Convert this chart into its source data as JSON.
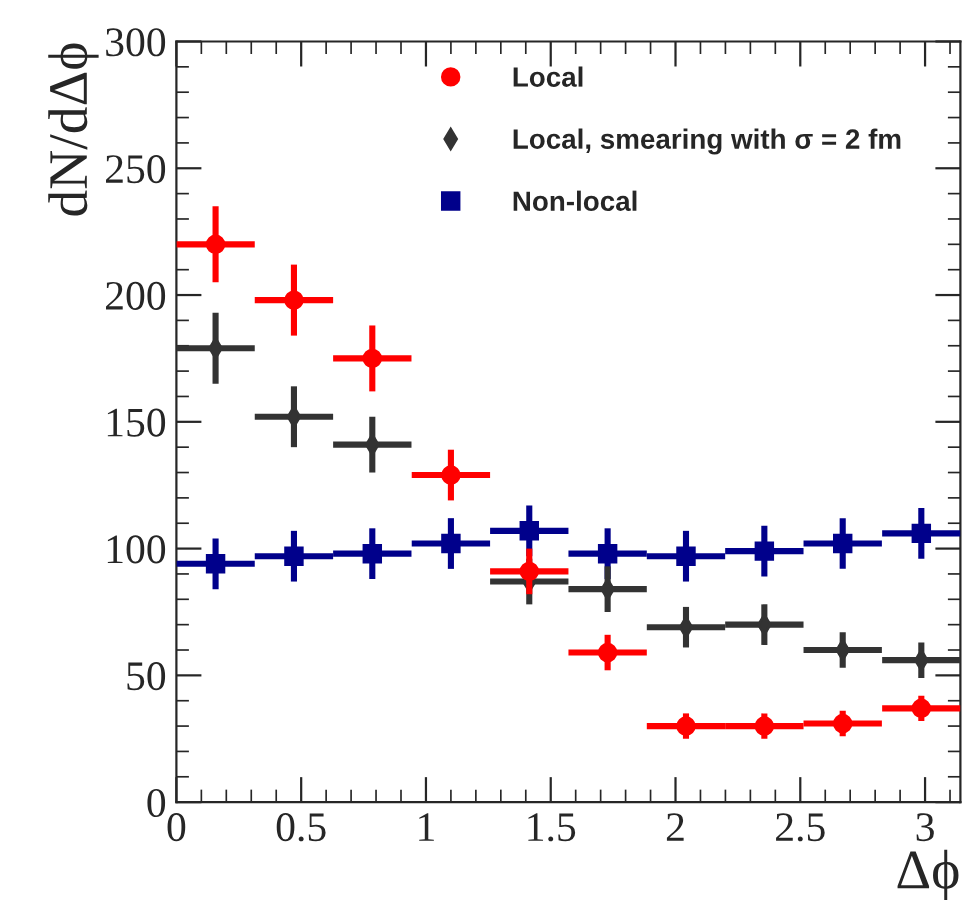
{
  "chart_data": {
    "type": "scatter",
    "xlabel": "Δϕ",
    "ylabel": "dN/dΔϕ",
    "x": [
      0.157,
      0.471,
      0.785,
      1.1,
      1.414,
      1.728,
      2.042,
      2.356,
      2.67,
      2.985
    ],
    "xlim": [
      0,
      3.1416
    ],
    "xticks": [
      0,
      0.5,
      1,
      1.5,
      2,
      2.5,
      3
    ],
    "ylim": [
      0,
      300
    ],
    "yticks": [
      0,
      50,
      100,
      150,
      200,
      250,
      300
    ],
    "legend": "top",
    "grid": false,
    "series": [
      {
        "name": "Local",
        "color": "#ff0000",
        "marker": "circle",
        "values": [
          220,
          198,
          175,
          129,
          91,
          59,
          30,
          30,
          31,
          37
        ],
        "errors": [
          15,
          14,
          13,
          10,
          9,
          7,
          5,
          5,
          5,
          5
        ],
        "xerrors": [
          0.157,
          0.157,
          0.157,
          0.157,
          0.157,
          0.157,
          0.157,
          0.157,
          0.157,
          0.157
        ]
      },
      {
        "name": "Local, smearing with σ = 2 fm",
        "color": "#333333",
        "marker": "diamond",
        "values": [
          179,
          152,
          141,
          null,
          87,
          84,
          69,
          70,
          60,
          56
        ],
        "errors": [
          14,
          12,
          11,
          null,
          9,
          9,
          8,
          8,
          7,
          7
        ],
        "xerrors": [
          0.157,
          0.157,
          0.157,
          null,
          0.157,
          0.157,
          0.157,
          0.157,
          0.157,
          0.157
        ]
      },
      {
        "name": "Non-local",
        "color": "#00008b",
        "marker": "square",
        "values": [
          94,
          97,
          98,
          102,
          107,
          98,
          97,
          99,
          102,
          106
        ],
        "errors": [
          10,
          10,
          10,
          10,
          10,
          10,
          10,
          10,
          10,
          10
        ],
        "xerrors": [
          0.157,
          0.157,
          0.157,
          0.157,
          0.157,
          0.157,
          0.157,
          0.157,
          0.157,
          0.157
        ]
      }
    ]
  }
}
